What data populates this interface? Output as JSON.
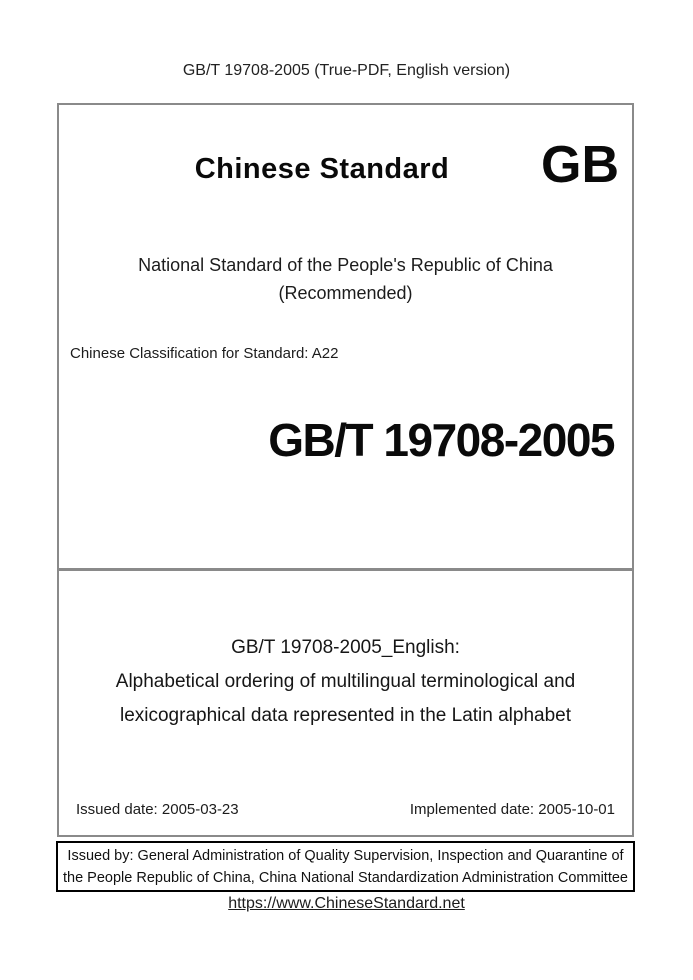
{
  "header": {
    "title": "GB/T 19708-2005 (True-PDF, English version)"
  },
  "cover": {
    "brand_title": "Chinese Standard",
    "gb_logo": "GB",
    "subtitle_line1": "National Standard of the People's Republic of China",
    "subtitle_line2": "(Recommended)",
    "classification": "Chinese Classification for Standard: A22",
    "standard_number": "GB/T 19708-2005"
  },
  "title_block": {
    "heading": "GB/T 19708-2005_English:",
    "title_line1": "Alphabetical ordering of multilingual terminological and",
    "title_line2": "lexicographical data represented in the Latin alphabet",
    "issued_date": "Issued date: 2005-03-23",
    "implemented_date": "Implemented date: 2005-10-01"
  },
  "issuer": {
    "line1": "Issued by: General Administration of Quality Supervision, Inspection and Quarantine of",
    "line2": "the People Republic of China, China National Standardization Administration Committee"
  },
  "footer": {
    "link": "https://www.ChineseStandard.net"
  },
  "colors": {
    "box_border_gray": "#8a8a8a",
    "box_border_black": "#000000",
    "text": "#1c1c1c",
    "background": "#ffffff"
  }
}
